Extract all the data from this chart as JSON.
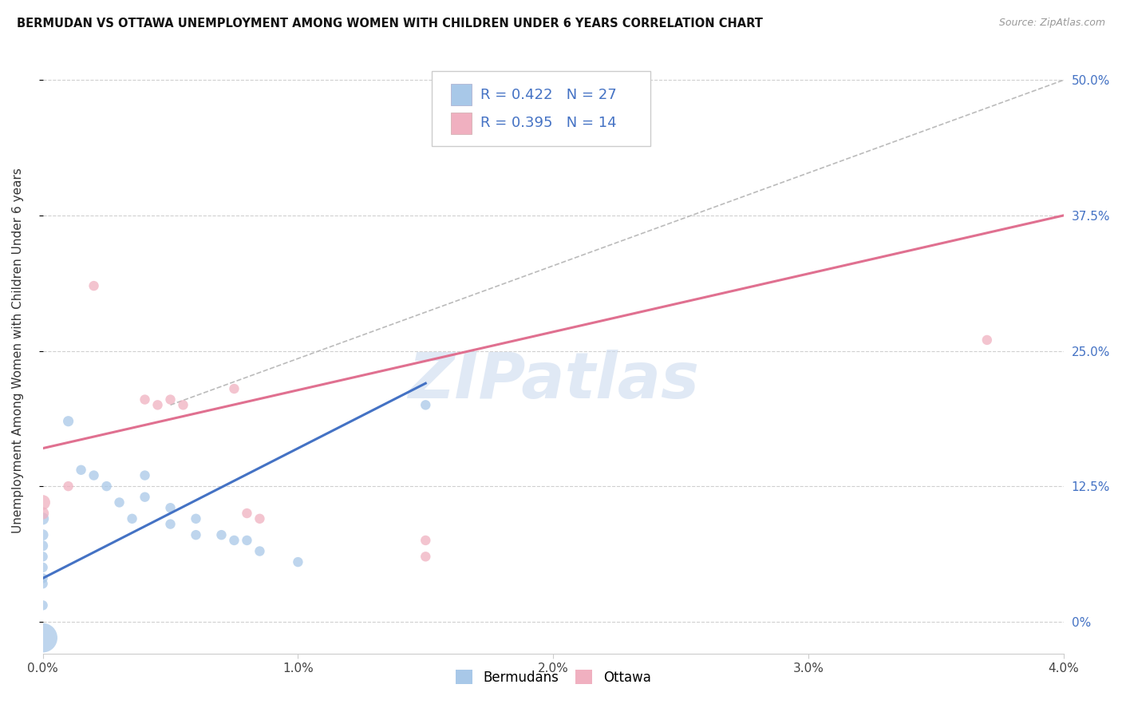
{
  "title": "BERMUDAN VS OTTAWA UNEMPLOYMENT AMONG WOMEN WITH CHILDREN UNDER 6 YEARS CORRELATION CHART",
  "source": "Source: ZipAtlas.com",
  "ylabel": "Unemployment Among Women with Children Under 6 years",
  "watermark": "ZIPatlas",
  "xlim": [
    0.0,
    4.0
  ],
  "ylim": [
    -3.0,
    53.0
  ],
  "xticks": [
    0.0,
    1.0,
    2.0,
    3.0,
    4.0
  ],
  "xtick_labels": [
    "0.0%",
    "1.0%",
    "2.0%",
    "3.0%",
    "4.0%"
  ],
  "ytick_labels_right": [
    "0%",
    "12.5%",
    "25.0%",
    "37.5%",
    "50.0%"
  ],
  "ytick_values_right": [
    0,
    12.5,
    25.0,
    37.5,
    50.0
  ],
  "blue_r": "0.422",
  "blue_n": "27",
  "pink_r": "0.395",
  "pink_n": "14",
  "legend_label_blue": "Bermudans",
  "legend_label_pink": "Ottawa",
  "blue_color": "#a8c8e8",
  "pink_color": "#f0b0c0",
  "blue_line_color": "#4472c4",
  "pink_line_color": "#e07090",
  "blue_scatter": [
    [
      0.0,
      9.5
    ],
    [
      0.0,
      8.0
    ],
    [
      0.0,
      7.0
    ],
    [
      0.0,
      6.0
    ],
    [
      0.0,
      5.0
    ],
    [
      0.0,
      4.0
    ],
    [
      0.0,
      3.5
    ],
    [
      0.0,
      1.5
    ],
    [
      0.1,
      18.5
    ],
    [
      0.15,
      14.0
    ],
    [
      0.2,
      13.5
    ],
    [
      0.25,
      12.5
    ],
    [
      0.3,
      11.0
    ],
    [
      0.35,
      9.5
    ],
    [
      0.4,
      13.5
    ],
    [
      0.4,
      11.5
    ],
    [
      0.5,
      10.5
    ],
    [
      0.5,
      9.0
    ],
    [
      0.6,
      9.5
    ],
    [
      0.6,
      8.0
    ],
    [
      0.7,
      8.0
    ],
    [
      0.75,
      7.5
    ],
    [
      0.8,
      7.5
    ],
    [
      0.85,
      6.5
    ],
    [
      1.0,
      5.5
    ],
    [
      1.5,
      20.0
    ],
    [
      0.0,
      -1.5
    ]
  ],
  "pink_scatter": [
    [
      0.0,
      11.0
    ],
    [
      0.0,
      10.0
    ],
    [
      0.1,
      12.5
    ],
    [
      0.2,
      31.0
    ],
    [
      0.4,
      20.5
    ],
    [
      0.45,
      20.0
    ],
    [
      0.5,
      20.5
    ],
    [
      0.55,
      20.0
    ],
    [
      0.75,
      21.5
    ],
    [
      0.8,
      10.0
    ],
    [
      0.85,
      9.5
    ],
    [
      1.5,
      7.5
    ],
    [
      1.5,
      6.0
    ],
    [
      3.7,
      26.0
    ]
  ],
  "blue_scatter_sizes": [
    120,
    100,
    90,
    80,
    80,
    80,
    80,
    80,
    90,
    80,
    80,
    80,
    80,
    80,
    80,
    80,
    80,
    80,
    80,
    80,
    80,
    80,
    80,
    80,
    80,
    80,
    700
  ],
  "pink_scatter_sizes": [
    180,
    120,
    80,
    80,
    80,
    80,
    80,
    80,
    80,
    80,
    80,
    80,
    80,
    80
  ],
  "blue_line_x": [
    0.0,
    1.5
  ],
  "blue_line_y": [
    4.0,
    22.0
  ],
  "pink_line_x": [
    0.0,
    4.0
  ],
  "pink_line_y": [
    16.0,
    37.5
  ],
  "diag_line_x": [
    0.5,
    4.0
  ],
  "diag_line_y": [
    20.0,
    50.0
  ],
  "background_color": "#ffffff",
  "grid_color": "#d0d0d0"
}
